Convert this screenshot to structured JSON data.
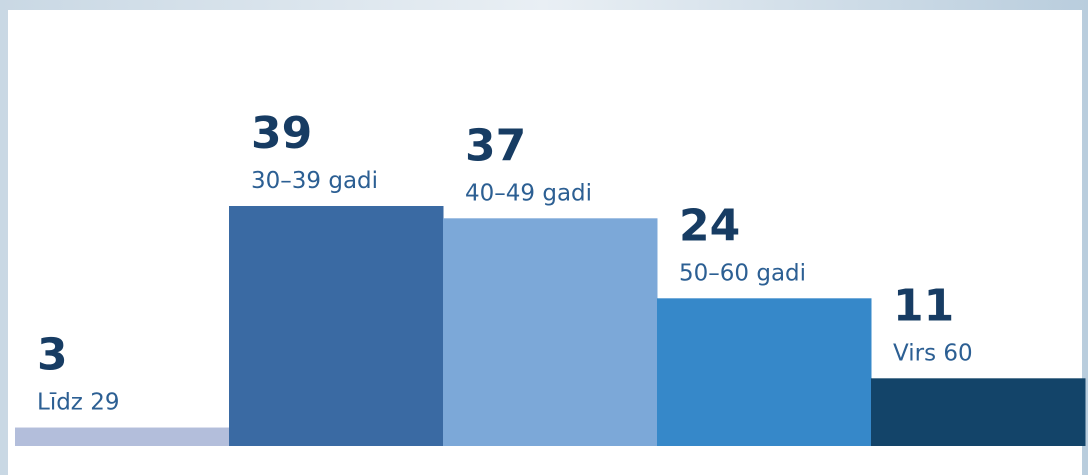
{
  "chart_data": {
    "type": "bar",
    "categories": [
      "Līdz 29",
      "30–39 gadi",
      "40–49 gadi",
      "50–60 gadi",
      "Virs 60"
    ],
    "values": [
      3,
      39,
      37,
      24,
      11
    ],
    "colors": [
      "#b3bedb",
      "#3a6aa3",
      "#7ca8d8",
      "#3688c9",
      "#134469"
    ]
  }
}
